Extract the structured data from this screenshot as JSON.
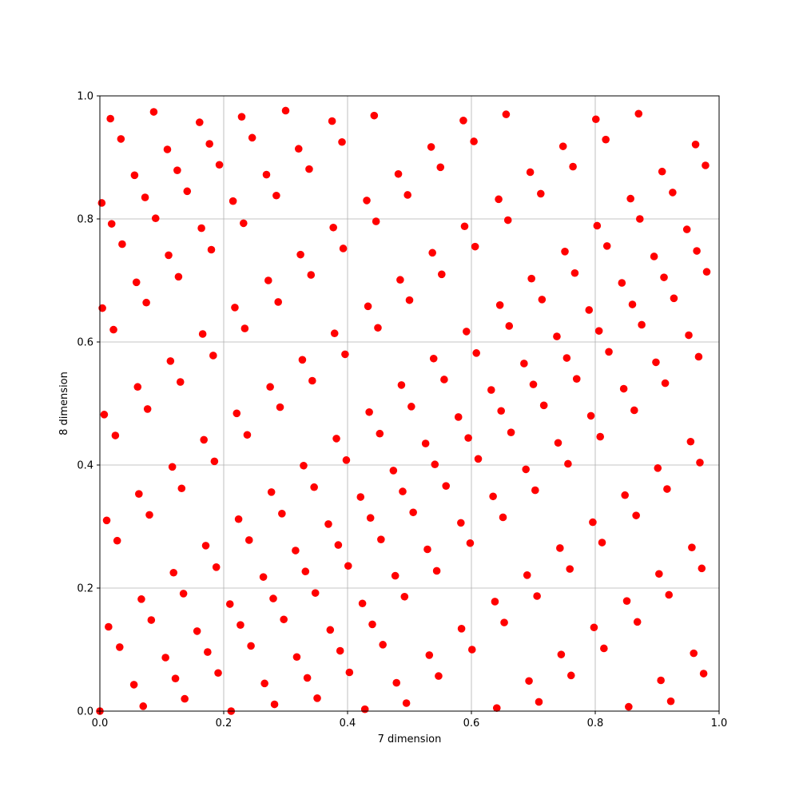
{
  "chart_data": {
    "type": "scatter",
    "title": "",
    "xlabel": "7 dimension",
    "ylabel": "8 dimension",
    "xlim": [
      0.0,
      1.0
    ],
    "ylim": [
      0.0,
      1.0
    ],
    "xticks": [
      "0.0",
      "0.2",
      "0.4",
      "0.6",
      "0.8",
      "1.0"
    ],
    "yticks": [
      "0.0",
      "0.2",
      "0.4",
      "0.6",
      "0.8",
      "1.0"
    ],
    "grid": true,
    "legend": "none",
    "marker_color": "#ff0000",
    "points": [
      [
        0.0,
        0.0
      ],
      [
        0.003,
        0.826
      ],
      [
        0.004,
        0.655
      ],
      [
        0.007,
        0.482
      ],
      [
        0.011,
        0.31
      ],
      [
        0.014,
        0.137
      ],
      [
        0.017,
        0.963
      ],
      [
        0.019,
        0.792
      ],
      [
        0.022,
        0.62
      ],
      [
        0.025,
        0.448
      ],
      [
        0.028,
        0.277
      ],
      [
        0.032,
        0.104
      ],
      [
        0.034,
        0.93
      ],
      [
        0.036,
        0.759
      ],
      [
        0.055,
        0.043
      ],
      [
        0.056,
        0.871
      ],
      [
        0.059,
        0.697
      ],
      [
        0.061,
        0.527
      ],
      [
        0.063,
        0.353
      ],
      [
        0.067,
        0.182
      ],
      [
        0.07,
        0.008
      ],
      [
        0.073,
        0.835
      ],
      [
        0.075,
        0.664
      ],
      [
        0.077,
        0.491
      ],
      [
        0.08,
        0.319
      ],
      [
        0.083,
        0.148
      ],
      [
        0.087,
        0.974
      ],
      [
        0.09,
        0.801
      ],
      [
        0.106,
        0.087
      ],
      [
        0.109,
        0.913
      ],
      [
        0.111,
        0.741
      ],
      [
        0.114,
        0.569
      ],
      [
        0.117,
        0.397
      ],
      [
        0.119,
        0.225
      ],
      [
        0.122,
        0.053
      ],
      [
        0.125,
        0.879
      ],
      [
        0.127,
        0.706
      ],
      [
        0.13,
        0.535
      ],
      [
        0.132,
        0.362
      ],
      [
        0.135,
        0.191
      ],
      [
        0.137,
        0.02
      ],
      [
        0.141,
        0.845
      ],
      [
        0.157,
        0.13
      ],
      [
        0.161,
        0.957
      ],
      [
        0.164,
        0.785
      ],
      [
        0.166,
        0.613
      ],
      [
        0.168,
        0.441
      ],
      [
        0.171,
        0.269
      ],
      [
        0.174,
        0.096
      ],
      [
        0.177,
        0.922
      ],
      [
        0.18,
        0.75
      ],
      [
        0.183,
        0.578
      ],
      [
        0.185,
        0.406
      ],
      [
        0.188,
        0.234
      ],
      [
        0.191,
        0.062
      ],
      [
        0.193,
        0.888
      ],
      [
        0.21,
        0.174
      ],
      [
        0.212,
        0.0
      ],
      [
        0.215,
        0.829
      ],
      [
        0.218,
        0.656
      ],
      [
        0.221,
        0.484
      ],
      [
        0.224,
        0.312
      ],
      [
        0.227,
        0.14
      ],
      [
        0.229,
        0.966
      ],
      [
        0.232,
        0.793
      ],
      [
        0.234,
        0.622
      ],
      [
        0.238,
        0.449
      ],
      [
        0.241,
        0.278
      ],
      [
        0.244,
        0.106
      ],
      [
        0.246,
        0.932
      ],
      [
        0.264,
        0.218
      ],
      [
        0.266,
        0.045
      ],
      [
        0.269,
        0.872
      ],
      [
        0.272,
        0.7
      ],
      [
        0.275,
        0.527
      ],
      [
        0.277,
        0.356
      ],
      [
        0.28,
        0.183
      ],
      [
        0.282,
        0.011
      ],
      [
        0.285,
        0.838
      ],
      [
        0.288,
        0.665
      ],
      [
        0.291,
        0.494
      ],
      [
        0.294,
        0.321
      ],
      [
        0.297,
        0.149
      ],
      [
        0.3,
        0.976
      ],
      [
        0.316,
        0.261
      ],
      [
        0.318,
        0.088
      ],
      [
        0.321,
        0.914
      ],
      [
        0.324,
        0.742
      ],
      [
        0.327,
        0.571
      ],
      [
        0.329,
        0.399
      ],
      [
        0.332,
        0.227
      ],
      [
        0.335,
        0.054
      ],
      [
        0.338,
        0.881
      ],
      [
        0.341,
        0.709
      ],
      [
        0.343,
        0.537
      ],
      [
        0.346,
        0.364
      ],
      [
        0.348,
        0.192
      ],
      [
        0.351,
        0.021
      ],
      [
        0.369,
        0.304
      ],
      [
        0.372,
        0.132
      ],
      [
        0.375,
        0.959
      ],
      [
        0.377,
        0.786
      ],
      [
        0.379,
        0.614
      ],
      [
        0.382,
        0.443
      ],
      [
        0.385,
        0.27
      ],
      [
        0.388,
        0.098
      ],
      [
        0.391,
        0.925
      ],
      [
        0.393,
        0.752
      ],
      [
        0.396,
        0.58
      ],
      [
        0.398,
        0.408
      ],
      [
        0.401,
        0.236
      ],
      [
        0.403,
        0.063
      ],
      [
        0.421,
        0.348
      ],
      [
        0.424,
        0.175
      ],
      [
        0.428,
        0.003
      ],
      [
        0.431,
        0.83
      ],
      [
        0.433,
        0.658
      ],
      [
        0.435,
        0.486
      ],
      [
        0.437,
        0.314
      ],
      [
        0.44,
        0.141
      ],
      [
        0.443,
        0.968
      ],
      [
        0.446,
        0.796
      ],
      [
        0.449,
        0.623
      ],
      [
        0.452,
        0.451
      ],
      [
        0.454,
        0.279
      ],
      [
        0.457,
        0.108
      ],
      [
        0.474,
        0.391
      ],
      [
        0.477,
        0.22
      ],
      [
        0.479,
        0.046
      ],
      [
        0.482,
        0.873
      ],
      [
        0.485,
        0.701
      ],
      [
        0.487,
        0.53
      ],
      [
        0.489,
        0.357
      ],
      [
        0.492,
        0.186
      ],
      [
        0.495,
        0.013
      ],
      [
        0.497,
        0.839
      ],
      [
        0.5,
        0.668
      ],
      [
        0.503,
        0.495
      ],
      [
        0.506,
        0.323
      ],
      [
        0.526,
        0.435
      ],
      [
        0.529,
        0.263
      ],
      [
        0.532,
        0.091
      ],
      [
        0.535,
        0.917
      ],
      [
        0.537,
        0.745
      ],
      [
        0.539,
        0.573
      ],
      [
        0.541,
        0.401
      ],
      [
        0.544,
        0.228
      ],
      [
        0.547,
        0.057
      ],
      [
        0.55,
        0.884
      ],
      [
        0.552,
        0.71
      ],
      [
        0.556,
        0.539
      ],
      [
        0.559,
        0.366
      ],
      [
        0.579,
        0.478
      ],
      [
        0.583,
        0.306
      ],
      [
        0.584,
        0.134
      ],
      [
        0.587,
        0.96
      ],
      [
        0.589,
        0.788
      ],
      [
        0.592,
        0.617
      ],
      [
        0.595,
        0.444
      ],
      [
        0.598,
        0.273
      ],
      [
        0.601,
        0.1
      ],
      [
        0.604,
        0.926
      ],
      [
        0.606,
        0.755
      ],
      [
        0.608,
        0.582
      ],
      [
        0.611,
        0.41
      ],
      [
        0.632,
        0.522
      ],
      [
        0.635,
        0.349
      ],
      [
        0.638,
        0.178
      ],
      [
        0.641,
        0.005
      ],
      [
        0.644,
        0.832
      ],
      [
        0.646,
        0.66
      ],
      [
        0.648,
        0.488
      ],
      [
        0.651,
        0.315
      ],
      [
        0.653,
        0.144
      ],
      [
        0.656,
        0.97
      ],
      [
        0.659,
        0.798
      ],
      [
        0.661,
        0.626
      ],
      [
        0.664,
        0.453
      ],
      [
        0.685,
        0.565
      ],
      [
        0.688,
        0.393
      ],
      [
        0.69,
        0.221
      ],
      [
        0.693,
        0.049
      ],
      [
        0.695,
        0.876
      ],
      [
        0.697,
        0.703
      ],
      [
        0.7,
        0.531
      ],
      [
        0.703,
        0.359
      ],
      [
        0.706,
        0.187
      ],
      [
        0.709,
        0.015
      ],
      [
        0.712,
        0.841
      ],
      [
        0.714,
        0.669
      ],
      [
        0.717,
        0.497
      ],
      [
        0.738,
        0.609
      ],
      [
        0.74,
        0.436
      ],
      [
        0.743,
        0.265
      ],
      [
        0.745,
        0.092
      ],
      [
        0.748,
        0.918
      ],
      [
        0.751,
        0.747
      ],
      [
        0.754,
        0.574
      ],
      [
        0.756,
        0.402
      ],
      [
        0.759,
        0.231
      ],
      [
        0.761,
        0.058
      ],
      [
        0.764,
        0.885
      ],
      [
        0.767,
        0.712
      ],
      [
        0.77,
        0.54
      ],
      [
        0.79,
        0.652
      ],
      [
        0.793,
        0.48
      ],
      [
        0.796,
        0.307
      ],
      [
        0.798,
        0.136
      ],
      [
        0.801,
        0.962
      ],
      [
        0.803,
        0.789
      ],
      [
        0.806,
        0.618
      ],
      [
        0.808,
        0.446
      ],
      [
        0.811,
        0.274
      ],
      [
        0.814,
        0.102
      ],
      [
        0.817,
        0.929
      ],
      [
        0.819,
        0.756
      ],
      [
        0.822,
        0.584
      ],
      [
        0.843,
        0.696
      ],
      [
        0.846,
        0.524
      ],
      [
        0.848,
        0.351
      ],
      [
        0.851,
        0.179
      ],
      [
        0.854,
        0.007
      ],
      [
        0.857,
        0.833
      ],
      [
        0.86,
        0.661
      ],
      [
        0.863,
        0.489
      ],
      [
        0.866,
        0.318
      ],
      [
        0.868,
        0.145
      ],
      [
        0.87,
        0.971
      ],
      [
        0.872,
        0.8
      ],
      [
        0.875,
        0.628
      ],
      [
        0.895,
        0.739
      ],
      [
        0.898,
        0.567
      ],
      [
        0.901,
        0.395
      ],
      [
        0.903,
        0.223
      ],
      [
        0.906,
        0.05
      ],
      [
        0.908,
        0.877
      ],
      [
        0.911,
        0.705
      ],
      [
        0.913,
        0.533
      ],
      [
        0.916,
        0.361
      ],
      [
        0.919,
        0.189
      ],
      [
        0.922,
        0.016
      ],
      [
        0.925,
        0.843
      ],
      [
        0.927,
        0.671
      ],
      [
        0.948,
        0.783
      ],
      [
        0.951,
        0.611
      ],
      [
        0.954,
        0.438
      ],
      [
        0.956,
        0.266
      ],
      [
        0.959,
        0.094
      ],
      [
        0.962,
        0.921
      ],
      [
        0.964,
        0.748
      ],
      [
        0.967,
        0.576
      ],
      [
        0.969,
        0.404
      ],
      [
        0.972,
        0.232
      ],
      [
        0.975,
        0.061
      ],
      [
        0.978,
        0.887
      ],
      [
        0.98,
        0.714
      ]
    ]
  }
}
